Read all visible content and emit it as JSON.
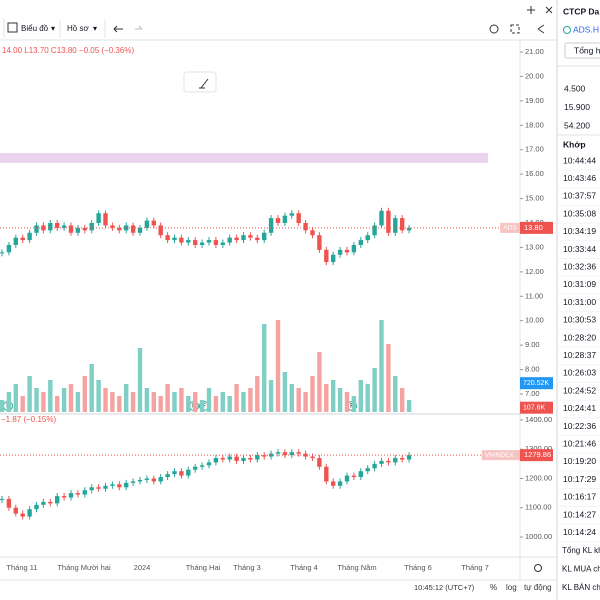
{
  "toolbar": {
    "chart_menu": "Biểu đồ",
    "profile_menu": "Hồ sơ"
  },
  "legend": {
    "ohlc": "14.00 L13.70 C13.80 −0.05 (−0.36%)",
    "index_change": "−1.87 (−0.15%)",
    "event_marker": "F"
  },
  "time_axis": {
    "labels": [
      "Tháng 11",
      "Tháng Mười hai",
      "2024",
      "Tháng Hai",
      "Tháng 3",
      "Tháng 4",
      "Tháng Năm",
      "Tháng 6",
      "Tháng 7"
    ]
  },
  "status_bar": {
    "clock": "10:45:12 (UTC+7)",
    "percent": "%",
    "log": "log",
    "auto": "tự động"
  },
  "chart_data": [
    {
      "type": "candlestick",
      "symbol_label": "ADS",
      "last": {
        "value": 13.8,
        "label": "13.80"
      },
      "up_color": "#26a69a",
      "down_color": "#ef5350",
      "values": [
        12.8,
        13.1,
        13.4,
        13.3,
        13.6,
        13.9,
        13.7,
        14.0,
        13.8,
        13.9,
        13.6,
        13.8,
        13.7,
        14.0,
        14.4,
        13.9,
        13.8,
        13.7,
        13.9,
        13.6,
        13.8,
        14.1,
        13.9,
        13.5,
        13.3,
        13.4,
        13.2,
        13.3,
        13.1,
        13.2,
        13.3,
        13.1,
        13.2,
        13.4,
        13.3,
        13.5,
        13.4,
        13.3,
        13.6,
        14.2,
        14.0,
        14.3,
        14.4,
        14.0,
        13.7,
        13.5,
        12.9,
        12.4,
        12.7,
        12.9,
        12.8,
        13.1,
        13.3,
        13.5,
        13.9,
        14.5,
        13.6,
        14.2,
        13.7,
        13.8
      ],
      "ylim": [
        7,
        21
      ],
      "yticks": [
        {
          "value": 21,
          "label": "21.00"
        },
        {
          "value": 20,
          "label": "20.00"
        },
        {
          "value": 19,
          "label": "19.00"
        },
        {
          "value": 18,
          "label": "18.00"
        },
        {
          "value": 17,
          "label": "17.00"
        },
        {
          "value": 16,
          "label": "16.00"
        },
        {
          "value": 15,
          "label": "15.00"
        },
        {
          "value": 14,
          "label": "14.00"
        },
        {
          "value": 13,
          "label": "13.00"
        },
        {
          "value": 12,
          "label": "12.00"
        },
        {
          "value": 11,
          "label": "11.00"
        },
        {
          "value": 10,
          "label": "10.00"
        },
        {
          "value": 9,
          "label": "9.00"
        },
        {
          "value": 8,
          "label": "8.00"
        },
        {
          "value": 7,
          "label": "7.00"
        }
      ]
    },
    {
      "type": "bar",
      "up_color": "#7fcfc4",
      "down_color": "#f5a3a1",
      "values": [
        300,
        500,
        700,
        400,
        900,
        600,
        500,
        800,
        400,
        600,
        700,
        500,
        900,
        1200,
        800,
        600,
        500,
        400,
        700,
        500,
        1600,
        600,
        500,
        400,
        700,
        500,
        600,
        400,
        500,
        300,
        600,
        400,
        500,
        400,
        700,
        500,
        600,
        900,
        2200,
        800,
        2300,
        1000,
        700,
        600,
        500,
        900,
        1500,
        700,
        800,
        600,
        500,
        400,
        800,
        700,
        1100,
        2300,
        1700,
        900,
        600,
        300
      ],
      "ylim": [
        0,
        2500
      ],
      "markers": [
        {
          "value": 720.52,
          "label": "720.52K",
          "color": "#2196f3"
        },
        {
          "value": 107.6,
          "label": "107.6K",
          "color": "#ef5350"
        }
      ]
    },
    {
      "type": "candlestick",
      "symbol_label": "VNINDEX",
      "last": {
        "value": 1279.86,
        "label": "1279.86"
      },
      "up_color": "#26a69a",
      "down_color": "#ef5350",
      "values": [
        1130,
        1100,
        1080,
        1070,
        1095,
        1110,
        1120,
        1115,
        1140,
        1135,
        1150,
        1145,
        1160,
        1170,
        1165,
        1175,
        1180,
        1170,
        1185,
        1190,
        1195,
        1200,
        1190,
        1205,
        1215,
        1225,
        1210,
        1230,
        1240,
        1245,
        1255,
        1270,
        1265,
        1275,
        1260,
        1270,
        1265,
        1280,
        1275,
        1285,
        1290,
        1280,
        1290,
        1285,
        1275,
        1270,
        1240,
        1190,
        1175,
        1190,
        1210,
        1205,
        1225,
        1235,
        1250,
        1260,
        1255,
        1270,
        1265,
        1280
      ],
      "ylim": [
        1000,
        1400
      ],
      "yticks": [
        {
          "value": 1400,
          "label": "1400.00"
        },
        {
          "value": 1300,
          "label": "1300.00"
        },
        {
          "value": 1200,
          "label": "1200.00"
        },
        {
          "value": 1100,
          "label": "1100.00"
        },
        {
          "value": 1000,
          "label": "1000.00"
        }
      ]
    }
  ],
  "side_panel": {
    "title": "CTCP Da",
    "ticker": "ADS.H",
    "button": "Tổng h",
    "prices": [
      "4.500",
      "15.900",
      "54.200"
    ],
    "header": "Khớp",
    "times": [
      "10:44:44",
      "10:43:46",
      "10:37:57",
      "10:35:08",
      "10:34:19",
      "10:33:44",
      "10:32:36",
      "10:31:09",
      "10:31:00",
      "10:30:53",
      "10:28:20",
      "10:28:37",
      "10:26:03",
      "10:24:52",
      "10:24:41",
      "10:22:36",
      "10:21:46",
      "10:19:20",
      "10:17:29",
      "10:16:17",
      "10:14:27",
      "10:14:24"
    ],
    "footer": [
      "Tổng KL kh",
      "KL MUA ch",
      "KL BÁN ch"
    ]
  }
}
